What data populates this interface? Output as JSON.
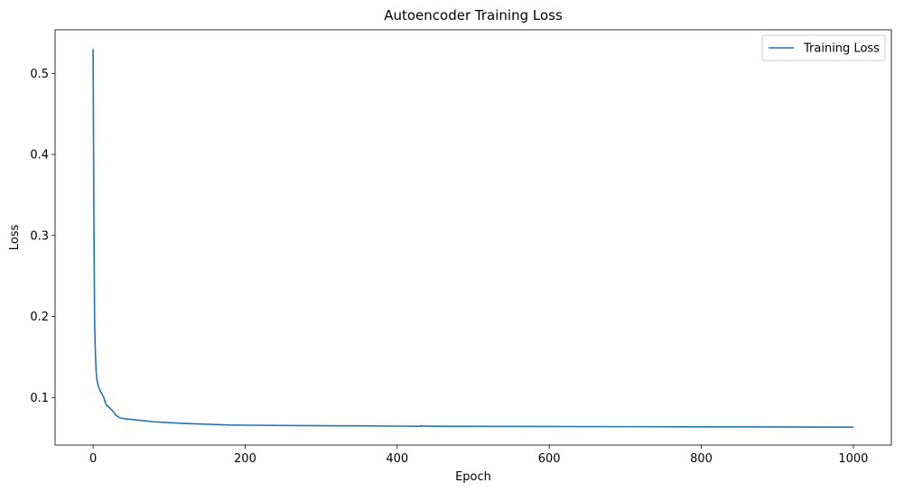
{
  "chart_data": {
    "type": "line",
    "title": "Autoencoder Training Loss",
    "xlabel": "Epoch",
    "ylabel": "Loss",
    "xlim": [
      -50,
      1050
    ],
    "ylim": [
      0.0413,
      0.5538
    ],
    "xticks": [
      0,
      200,
      400,
      600,
      800,
      1000
    ],
    "yticks": [
      0.1,
      0.2,
      0.3,
      0.4,
      0.5
    ],
    "xtick_labels": [
      "0",
      "200",
      "400",
      "600",
      "800",
      "1000"
    ],
    "ytick_labels": [
      "0.1",
      "0.2",
      "0.3",
      "0.4",
      "0.5"
    ],
    "grid": false,
    "legend_position": "top-right",
    "series": [
      {
        "name": "Training Loss",
        "color": "#1f77b4",
        "x": [
          0,
          1,
          2,
          3,
          4,
          5,
          6,
          8,
          10,
          12,
          14,
          16,
          18,
          20,
          22,
          25,
          28,
          30,
          35,
          40,
          50,
          60,
          70,
          80,
          100,
          120,
          150,
          180,
          200,
          250,
          300,
          350,
          400,
          430,
          431,
          432,
          433,
          450,
          500,
          600,
          700,
          800,
          900,
          1000
        ],
        "y": [
          0.53,
          0.33,
          0.19,
          0.155,
          0.132,
          0.122,
          0.117,
          0.111,
          0.107,
          0.104,
          0.1,
          0.094,
          0.09,
          0.089,
          0.087,
          0.084,
          0.081,
          0.078,
          0.075,
          0.074,
          0.073,
          0.072,
          0.071,
          0.07,
          0.069,
          0.068,
          0.067,
          0.066,
          0.0658,
          0.0655,
          0.0652,
          0.065,
          0.0647,
          0.0645,
          0.0652,
          0.0645,
          0.0648,
          0.0645,
          0.0643,
          0.0642,
          0.064,
          0.0638,
          0.0636,
          0.0634
        ]
      }
    ]
  }
}
